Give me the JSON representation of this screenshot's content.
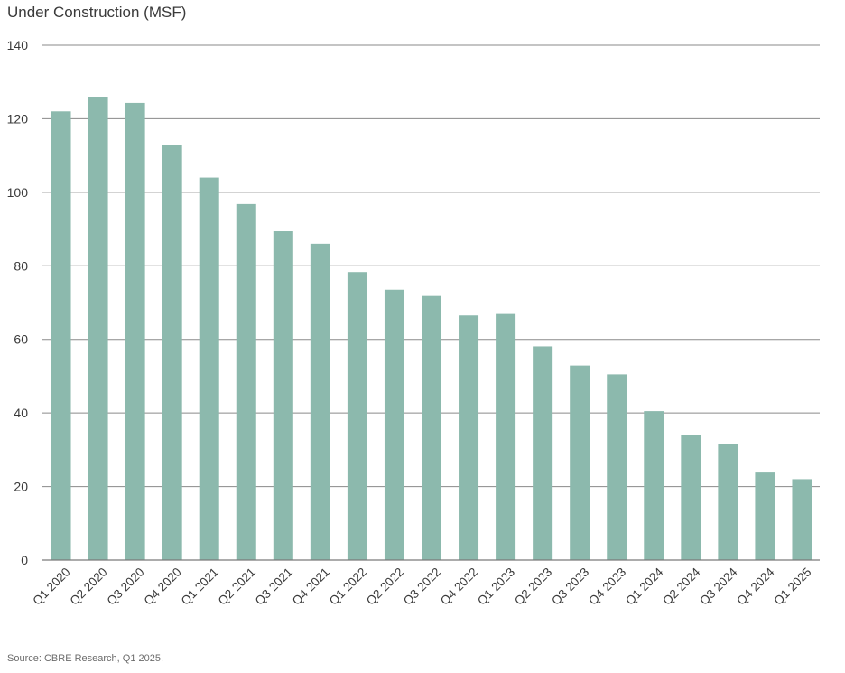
{
  "chart_data": {
    "type": "bar",
    "title": "Under Construction (MSF)",
    "xlabel": "",
    "ylabel": "",
    "ylim": [
      0,
      140
    ],
    "yticks": [
      0,
      20,
      40,
      60,
      80,
      100,
      120,
      140
    ],
    "grid": true,
    "categories": [
      "Q1 2020",
      "Q2 2020",
      "Q3 2020",
      "Q4 2020",
      "Q1 2021",
      "Q2 2021",
      "Q3 2021",
      "Q4 2021",
      "Q1 2022",
      "Q2 2022",
      "Q3 2022",
      "Q4 2022",
      "Q1 2023",
      "Q2 2023",
      "Q3 2023",
      "Q4 2023",
      "Q1 2024",
      "Q2 2024",
      "Q3 2024",
      "Q4 2024",
      "Q1 2025"
    ],
    "values": [
      122,
      126,
      124.3,
      112.8,
      104,
      96.8,
      89.4,
      86,
      78.3,
      73.5,
      71.8,
      66.5,
      66.9,
      58.1,
      52.9,
      50.5,
      40.5,
      34.1,
      31.5,
      23.8,
      22
    ],
    "bar_color": "#8cb9ad",
    "grid_color": "#8a8a8a",
    "axis_color": "#7a7a7a"
  },
  "source": "Source: CBRE Research, Q1 2025."
}
